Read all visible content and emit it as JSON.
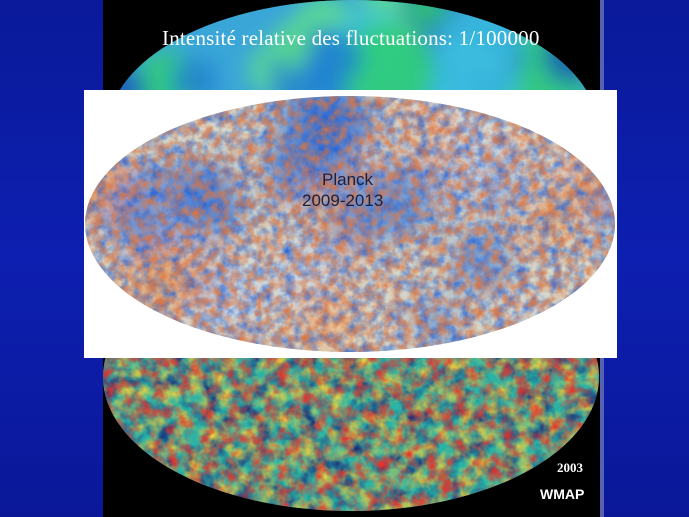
{
  "slide": {
    "title": "Intensité relative des fluctuations: 1/100000"
  },
  "planck": {
    "name": "Planck",
    "years": "2009-2013"
  },
  "wmap": {
    "year": "2003",
    "name": "WMAP"
  },
  "colors": {
    "background": "#0d1fb0",
    "panel": "#000000",
    "text": "#ffffff",
    "planck_label": "#1a1f3a"
  },
  "images": {
    "top_map": "cobe-sky-map",
    "planck_map": "planck-cmb-sky-map",
    "wmap_map": "wmap-cmb-sky-map"
  }
}
